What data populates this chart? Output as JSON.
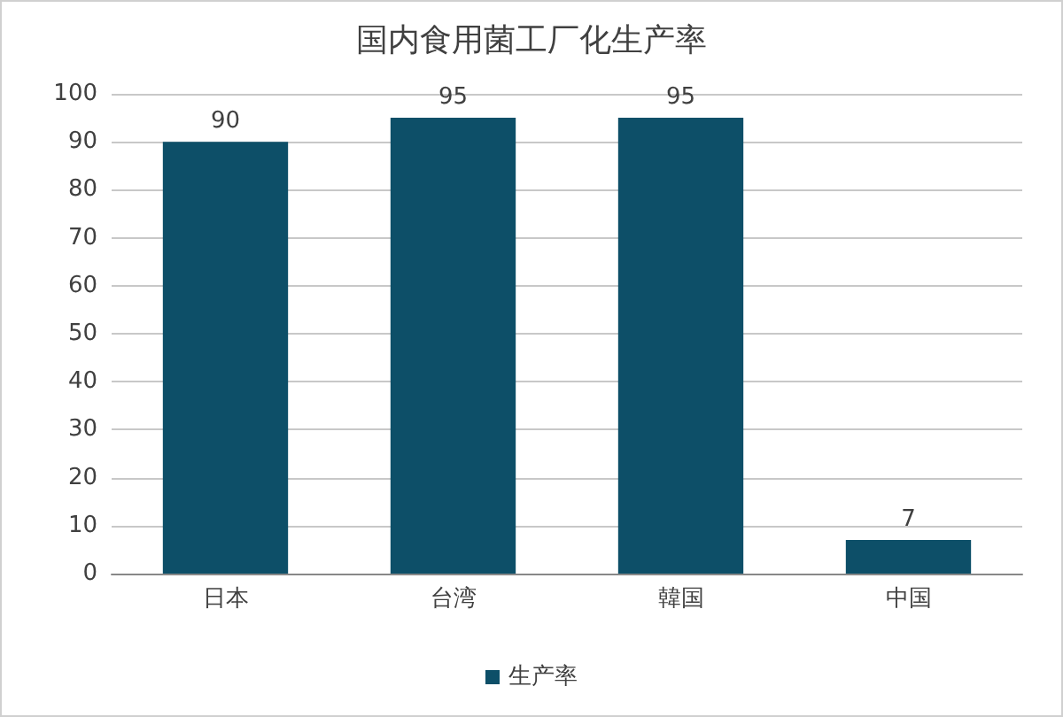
{
  "chart_data": {
    "type": "bar",
    "title": "国内食用菌工厂化生产率",
    "categories": [
      "日本",
      "台湾",
      "韓国",
      "中国"
    ],
    "series": [
      {
        "name": "生产率",
        "color": "#0d4f68",
        "values": [
          90,
          95,
          95,
          7
        ]
      }
    ],
    "ylim": [
      0,
      100
    ],
    "yticks": [
      0,
      10,
      20,
      30,
      40,
      50,
      60,
      70,
      80,
      90,
      100
    ],
    "grid": "y",
    "legend": "bottom",
    "data_labels": true
  }
}
